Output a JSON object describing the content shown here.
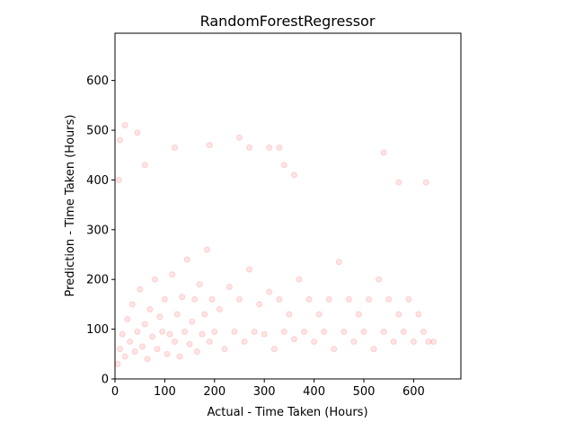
{
  "chart_data": {
    "type": "scatter",
    "title": "RandomForestRegressor",
    "xlabel": "Actual - Time Taken (Hours)",
    "ylabel": "Prediction - Time Taken (Hours)",
    "xlim": [
      0,
      695
    ],
    "ylim": [
      0,
      695
    ],
    "xticks": [
      0,
      100,
      200,
      300,
      400,
      500,
      600
    ],
    "yticks": [
      0,
      100,
      200,
      300,
      400,
      500,
      600
    ],
    "grid": false,
    "legend": "none",
    "marker_color": "#ff0000",
    "marker_alpha": 0.1,
    "series": [
      {
        "points": [
          [
            5,
            30
          ],
          [
            10,
            60
          ],
          [
            15,
            90
          ],
          [
            20,
            45
          ],
          [
            25,
            120
          ],
          [
            30,
            75
          ],
          [
            35,
            150
          ],
          [
            40,
            55
          ],
          [
            45,
            95
          ],
          [
            50,
            180
          ],
          [
            55,
            65
          ],
          [
            60,
            110
          ],
          [
            65,
            40
          ],
          [
            70,
            140
          ],
          [
            75,
            85
          ],
          [
            80,
            200
          ],
          [
            85,
            60
          ],
          [
            90,
            125
          ],
          [
            95,
            95
          ],
          [
            100,
            160
          ],
          [
            105,
            50
          ],
          [
            110,
            90
          ],
          [
            115,
            210
          ],
          [
            120,
            75
          ],
          [
            125,
            130
          ],
          [
            130,
            45
          ],
          [
            135,
            165
          ],
          [
            140,
            95
          ],
          [
            145,
            240
          ],
          [
            150,
            70
          ],
          [
            155,
            115
          ],
          [
            160,
            160
          ],
          [
            165,
            55
          ],
          [
            170,
            190
          ],
          [
            175,
            90
          ],
          [
            180,
            130
          ],
          [
            185,
            260
          ],
          [
            190,
            75
          ],
          [
            195,
            160
          ],
          [
            200,
            95
          ],
          [
            210,
            140
          ],
          [
            220,
            60
          ],
          [
            230,
            185
          ],
          [
            240,
            95
          ],
          [
            250,
            160
          ],
          [
            260,
            75
          ],
          [
            270,
            220
          ],
          [
            280,
            95
          ],
          [
            290,
            150
          ],
          [
            300,
            90
          ],
          [
            310,
            175
          ],
          [
            320,
            60
          ],
          [
            330,
            160
          ],
          [
            340,
            95
          ],
          [
            350,
            130
          ],
          [
            360,
            80
          ],
          [
            370,
            200
          ],
          [
            380,
            95
          ],
          [
            390,
            160
          ],
          [
            400,
            75
          ],
          [
            410,
            130
          ],
          [
            420,
            95
          ],
          [
            430,
            160
          ],
          [
            440,
            60
          ],
          [
            450,
            235
          ],
          [
            460,
            95
          ],
          [
            470,
            160
          ],
          [
            480,
            75
          ],
          [
            490,
            130
          ],
          [
            500,
            95
          ],
          [
            510,
            160
          ],
          [
            520,
            60
          ],
          [
            530,
            200
          ],
          [
            540,
            95
          ],
          [
            550,
            160
          ],
          [
            560,
            75
          ],
          [
            570,
            130
          ],
          [
            580,
            95
          ],
          [
            590,
            160
          ],
          [
            600,
            75
          ],
          [
            610,
            130
          ],
          [
            620,
            95
          ],
          [
            630,
            75
          ],
          [
            640,
            75
          ],
          [
            10,
            480
          ],
          [
            20,
            510
          ],
          [
            45,
            495
          ],
          [
            120,
            465
          ],
          [
            190,
            470
          ],
          [
            250,
            485
          ],
          [
            270,
            465
          ],
          [
            310,
            465
          ],
          [
            330,
            465
          ],
          [
            340,
            430
          ],
          [
            360,
            410
          ],
          [
            540,
            455
          ],
          [
            570,
            395
          ],
          [
            625,
            395
          ],
          [
            8,
            400
          ],
          [
            60,
            430
          ]
        ]
      }
    ]
  }
}
